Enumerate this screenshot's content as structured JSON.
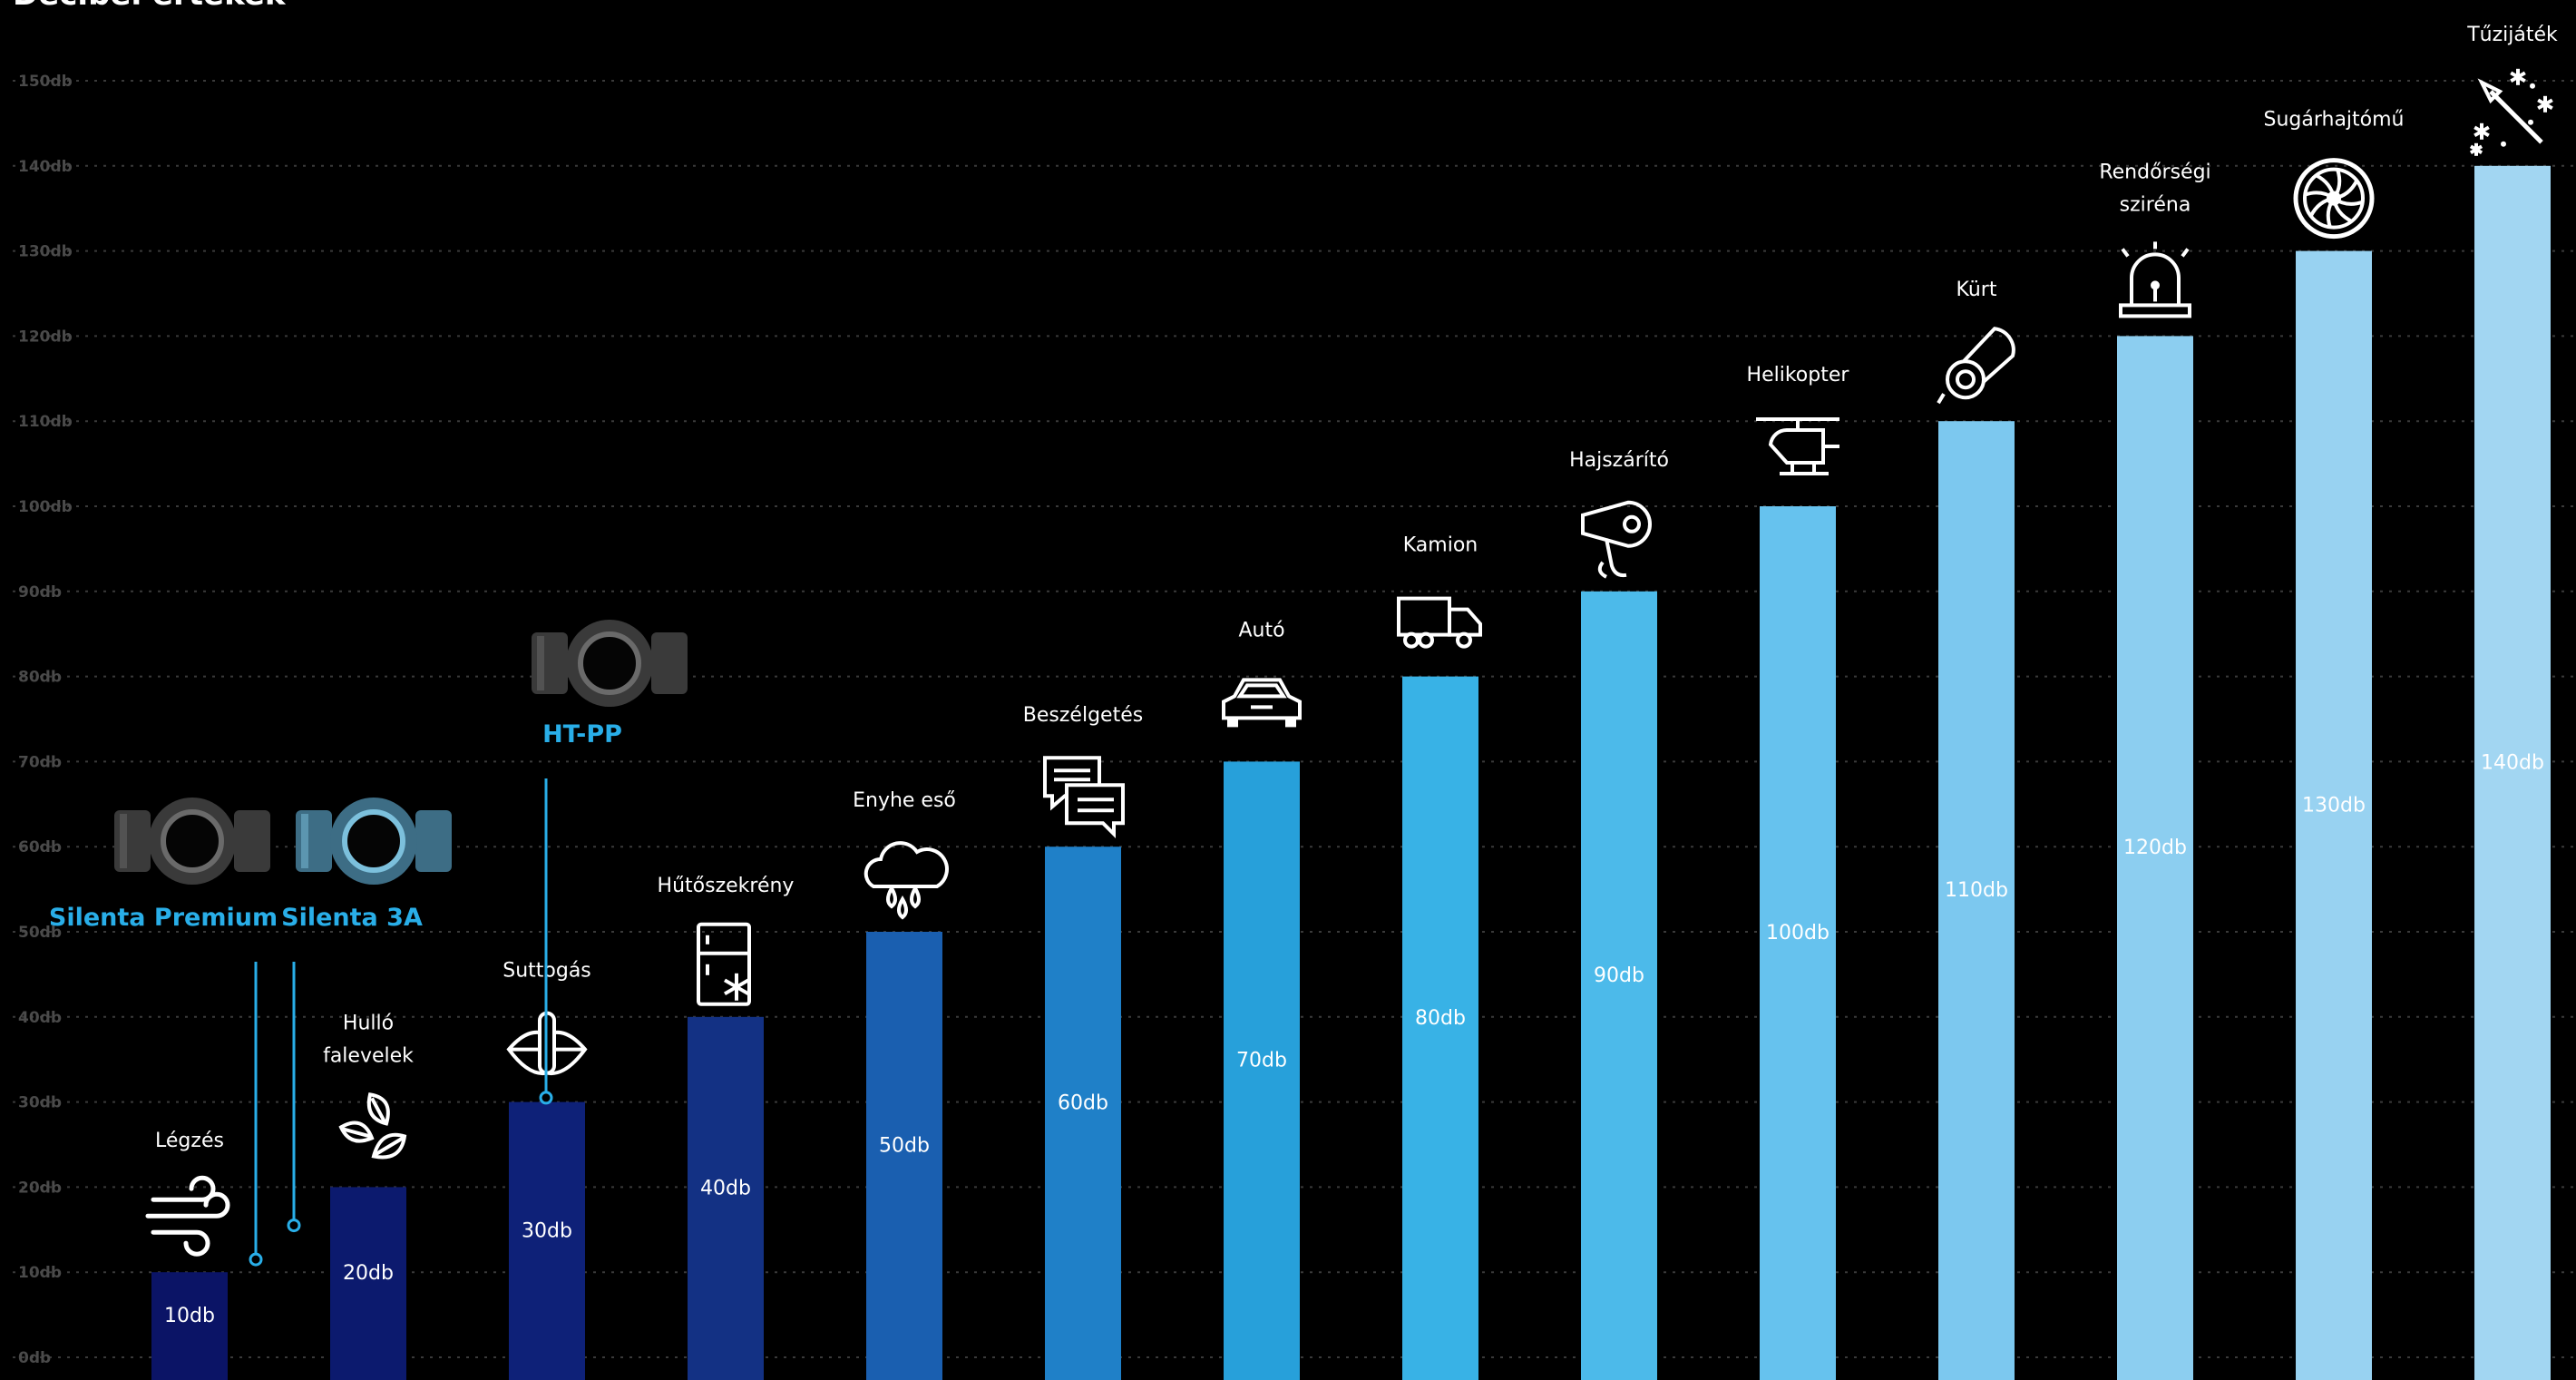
{
  "chart_data": {
    "type": "bar",
    "title": "Decibel értékek",
    "y_unit": "db",
    "ylim": [
      0,
      150
    ],
    "y_ticks": [
      "0db",
      "10db",
      "20db",
      "30db",
      "40db",
      "50db",
      "60db",
      "70db",
      "80db",
      "90db",
      "100db",
      "110db",
      "120db",
      "130db",
      "140db",
      "150db"
    ],
    "grid": true,
    "categories": [
      "Légzés",
      "Hulló falevelek",
      "Suttogás",
      "Hűtőszekrény",
      "Enyhe eső",
      "Beszélgetés",
      "Autó",
      "Kamion",
      "Hajszárító",
      "Helikopter",
      "Kürt",
      "Rendőrségi sziréna",
      "Sugárhajtómű",
      "Tűzijáték"
    ],
    "values": [
      10,
      20,
      30,
      40,
      50,
      60,
      70,
      80,
      90,
      100,
      110,
      120,
      130,
      140
    ],
    "value_labels": [
      "10db",
      "20db",
      "30db",
      "40db",
      "50db",
      "60db",
      "70db",
      "80db",
      "90db",
      "100db",
      "110db",
      "120db",
      "130db",
      "140db"
    ],
    "category_icons": [
      "wind-icon",
      "leaves-icon",
      "whisper-lips-icon",
      "fridge-icon",
      "rain-cloud-icon",
      "chat-bubbles-icon",
      "car-icon",
      "truck-icon",
      "hair-dryer-icon",
      "helicopter-icon",
      "horn-icon",
      "siren-icon",
      "jet-engine-icon",
      "fireworks-icon"
    ],
    "bar_colors": [
      "#0b1466",
      "#0c1a6e",
      "#0e2178",
      "#133184",
      "#1a5fb0",
      "#1f80c8",
      "#27a0da",
      "#38b2e6",
      "#4cbaea",
      "#66c2ee",
      "#7cc8ef",
      "#8ccef0",
      "#98d2f1",
      "#a2d6f2"
    ],
    "annotations": [
      {
        "label": "Silenta Premium",
        "value": 11.5,
        "icon": "pipe-fitting-dark-icon",
        "color": "#29aee8"
      },
      {
        "label": "Silenta 3A",
        "value": 15.5,
        "icon": "pipe-fitting-blue-icon",
        "color": "#29aee8"
      },
      {
        "label": "HT-PP",
        "value": 30.5,
        "icon": "pipe-fitting-dark-icon",
        "color": "#29aee8"
      }
    ]
  }
}
